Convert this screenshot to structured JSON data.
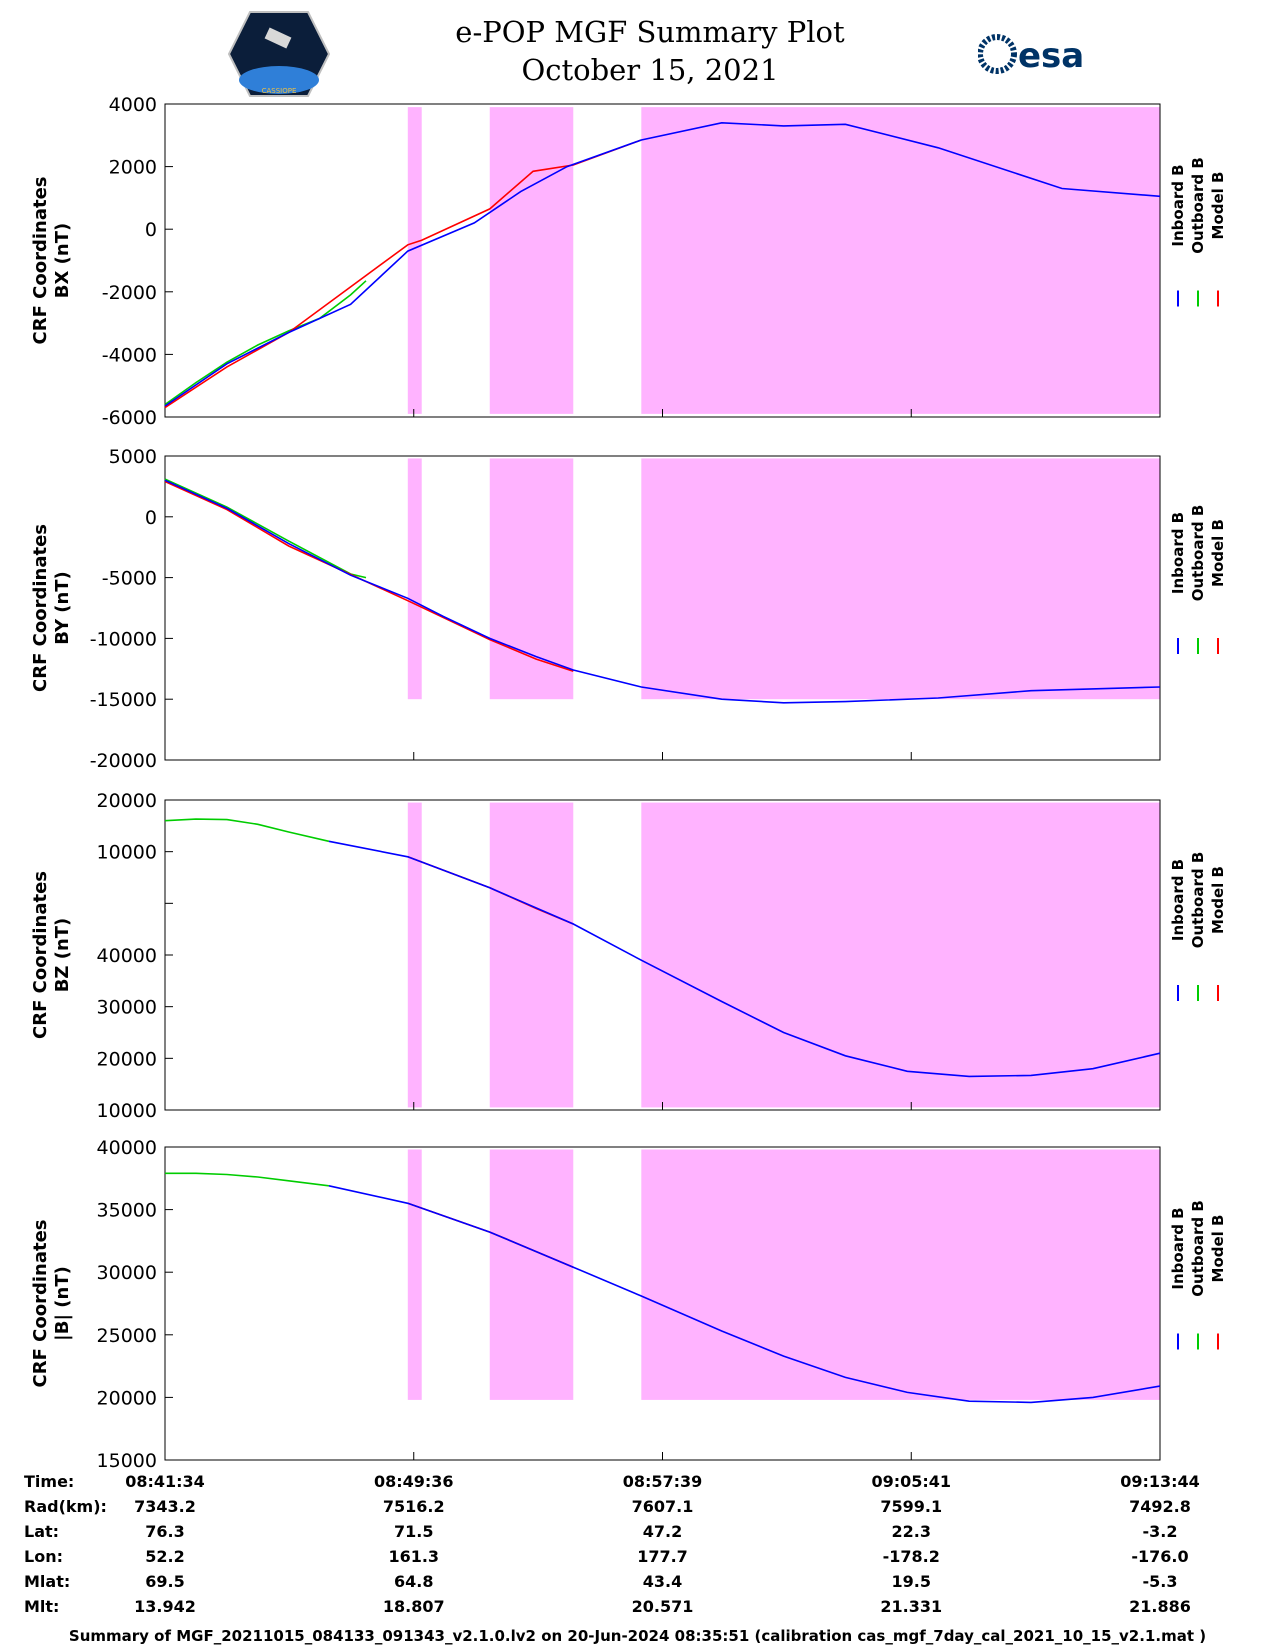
{
  "header": {
    "title_line1": "e-POP MGF Summary Plot",
    "title_line2": "October 15, 2021",
    "esa_logo_text": "esa",
    "cassiope_logo_text": "CASSIOPE"
  },
  "colors": {
    "inboard": "#0000ff",
    "outboard": "#00cc00",
    "model": "#ff0000",
    "shade": "#ffb3ff"
  },
  "chart_data": {
    "type": "line",
    "x_ticks": [
      "08:41:34",
      "08:49:36",
      "08:57:39",
      "09:05:41",
      "09:13:44"
    ],
    "x_range_minutes": [
      0,
      32.17
    ],
    "shaded_intervals_minutes": [
      [
        7.85,
        8.3
      ],
      [
        10.5,
        13.2
      ],
      [
        15.4,
        32.17
      ]
    ],
    "legend": [
      "Inboard B",
      "Outboard B",
      "Model B"
    ],
    "panels": [
      {
        "ylabel_line1": "CRF Coordinates",
        "ylabel_line2": "BX (nT)",
        "ylim": [
          -6000,
          4000
        ],
        "y_ticks": [
          "4000",
          "2000",
          "0",
          "-2000",
          "-4000",
          "-6000"
        ],
        "shade_top": 3900,
        "shade_bottom": -5900,
        "series": [
          {
            "name": "Inboard B",
            "x": [
              0,
              2,
              4,
              6,
              7.85,
              10,
              11.5,
              13,
              15.4,
              18,
              20,
              22,
              25,
              29,
              32.17
            ],
            "values": [
              -5650,
              -4300,
              -3300,
              -2400,
              -700,
              200,
              1200,
              2000,
              2850,
              3400,
              3300,
              3350,
              2600,
              1300,
              1050
            ]
          },
          {
            "name": "Outboard B",
            "x": [
              0,
              1,
              2,
              3,
              4,
              5,
              6,
              6.5
            ],
            "values": [
              -5600,
              -4900,
              -4250,
              -3700,
              -3250,
              -2850,
              -2100,
              -1650
            ]
          },
          {
            "name": "Model B",
            "x": [
              0,
              2,
              4,
              7.85,
              8.3,
              10.5,
              11.9,
              13.2,
              15.4
            ],
            "values": [
              -5700,
              -4400,
              -3300,
              -500,
              -350,
              650,
              1850,
              2050,
              2850
            ]
          }
        ]
      },
      {
        "ylabel_line1": "CRF Coordinates",
        "ylabel_line2": "BY (nT)",
        "ylim": [
          -20000,
          5000
        ],
        "y_ticks": [
          "5000",
          "0",
          "-5000",
          "-10000",
          "-15000",
          "-20000"
        ],
        "shade_top": 4800,
        "shade_bottom": -15000,
        "series": [
          {
            "name": "Inboard B",
            "x": [
              0,
              2,
              4,
              6,
              7.85,
              9,
              10.5,
              12,
              13.2,
              15.4,
              18,
              20,
              22,
              25,
              28,
              32.17
            ],
            "values": [
              3000,
              700,
              -2200,
              -4800,
              -6700,
              -8200,
              -10000,
              -11500,
              -12600,
              -14000,
              -15000,
              -15300,
              -15200,
              -14900,
              -14300,
              -14000
            ]
          },
          {
            "name": "Outboard B",
            "x": [
              0,
              2,
              4,
              6,
              6.5
            ],
            "values": [
              3100,
              800,
              -2000,
              -4700,
              -5000
            ]
          },
          {
            "name": "Model B",
            "x": [
              0,
              2,
              4,
              7.85,
              10.5,
              12,
              13.2
            ],
            "values": [
              2900,
              600,
              -2400,
              -6900,
              -10100,
              -11700,
              -12700
            ]
          }
        ]
      },
      {
        "ylabel_line1": "CRF Coordinates",
        "ylabel_line2": "BZ (nT)",
        "ylim": [
          10000,
          70000
        ],
        "y_ticks": [
          "20000",
          "10000",
          "",
          "40000",
          "30000",
          "20000",
          "10000"
        ],
        "shade_top": 69500,
        "shade_bottom": 10500,
        "series": [
          {
            "name": "Inboard B",
            "x": [
              5.3,
              7.85,
              10.5,
              13.2,
              15.4,
              18,
              20,
              22,
              24,
              26,
              28,
              30,
              32.17
            ],
            "values": [
              62000,
              59000,
              53000,
              46000,
              39000,
              31000,
              25000,
              20500,
              17500,
              16500,
              16700,
              18000,
              21000
            ]
          },
          {
            "name": "Outboard B",
            "x": [
              0,
              1,
              2,
              3,
              4,
              5.3
            ],
            "values": [
              66000,
              66300,
              66200,
              65300,
              63800,
              62000
            ]
          },
          {
            "name": "Model B",
            "x": [
              7.85,
              10.5,
              12,
              13.2
            ],
            "values": [
              59000,
              53000,
              49000,
              46000
            ]
          }
        ]
      },
      {
        "ylabel_line1": "CRF Coordinates",
        "ylabel_line2": "|B| (nT)",
        "ylim": [
          15000,
          40000
        ],
        "y_ticks": [
          "40000",
          "35000",
          "30000",
          "25000",
          "20000",
          "15000"
        ],
        "shade_top": 39800,
        "shade_bottom": 19800,
        "series": [
          {
            "name": "Inboard B",
            "x": [
              5.3,
              7.85,
              10.5,
              13.2,
              15.4,
              18,
              20,
              22,
              24,
              26,
              28,
              30,
              32.17
            ],
            "values": [
              36900,
              35500,
              33200,
              30400,
              28100,
              25300,
              23300,
              21600,
              20400,
              19700,
              19600,
              20000,
              20900
            ]
          },
          {
            "name": "Outboard B",
            "x": [
              0,
              1,
              2,
              3,
              4,
              5.3
            ],
            "values": [
              37900,
              37900,
              37800,
              37600,
              37300,
              36900
            ]
          },
          {
            "name": "Model B",
            "x": [
              7.85,
              10.5,
              13.2
            ],
            "values": [
              35500,
              33200,
              30400
            ]
          }
        ]
      }
    ]
  },
  "ephemeris": {
    "labels": [
      "Time:",
      "Rad(km):",
      "Lat:",
      "Lon:",
      "Mlat:",
      "Mlt:"
    ],
    "columns": [
      [
        "08:41:34",
        "7343.2",
        "76.3",
        "52.2",
        "69.5",
        "13.942"
      ],
      [
        "08:49:36",
        "7516.2",
        "71.5",
        "161.3",
        "64.8",
        "18.807"
      ],
      [
        "08:57:39",
        "7607.1",
        "47.2",
        "177.7",
        "43.4",
        "20.571"
      ],
      [
        "09:05:41",
        "7599.1",
        "22.3",
        "-178.2",
        "19.5",
        "21.331"
      ],
      [
        "09:13:44",
        "7492.8",
        "-3.2",
        "-176.0",
        "-5.3",
        "21.886"
      ]
    ]
  },
  "footer": {
    "text": "Summary of MGF_20211015_084133_091343_v2.1.0.lv2 on 20-Jun-2024 08:35:51 (calibration cas_mgf_7day_cal_2021_10_15_v2.1.mat )"
  }
}
